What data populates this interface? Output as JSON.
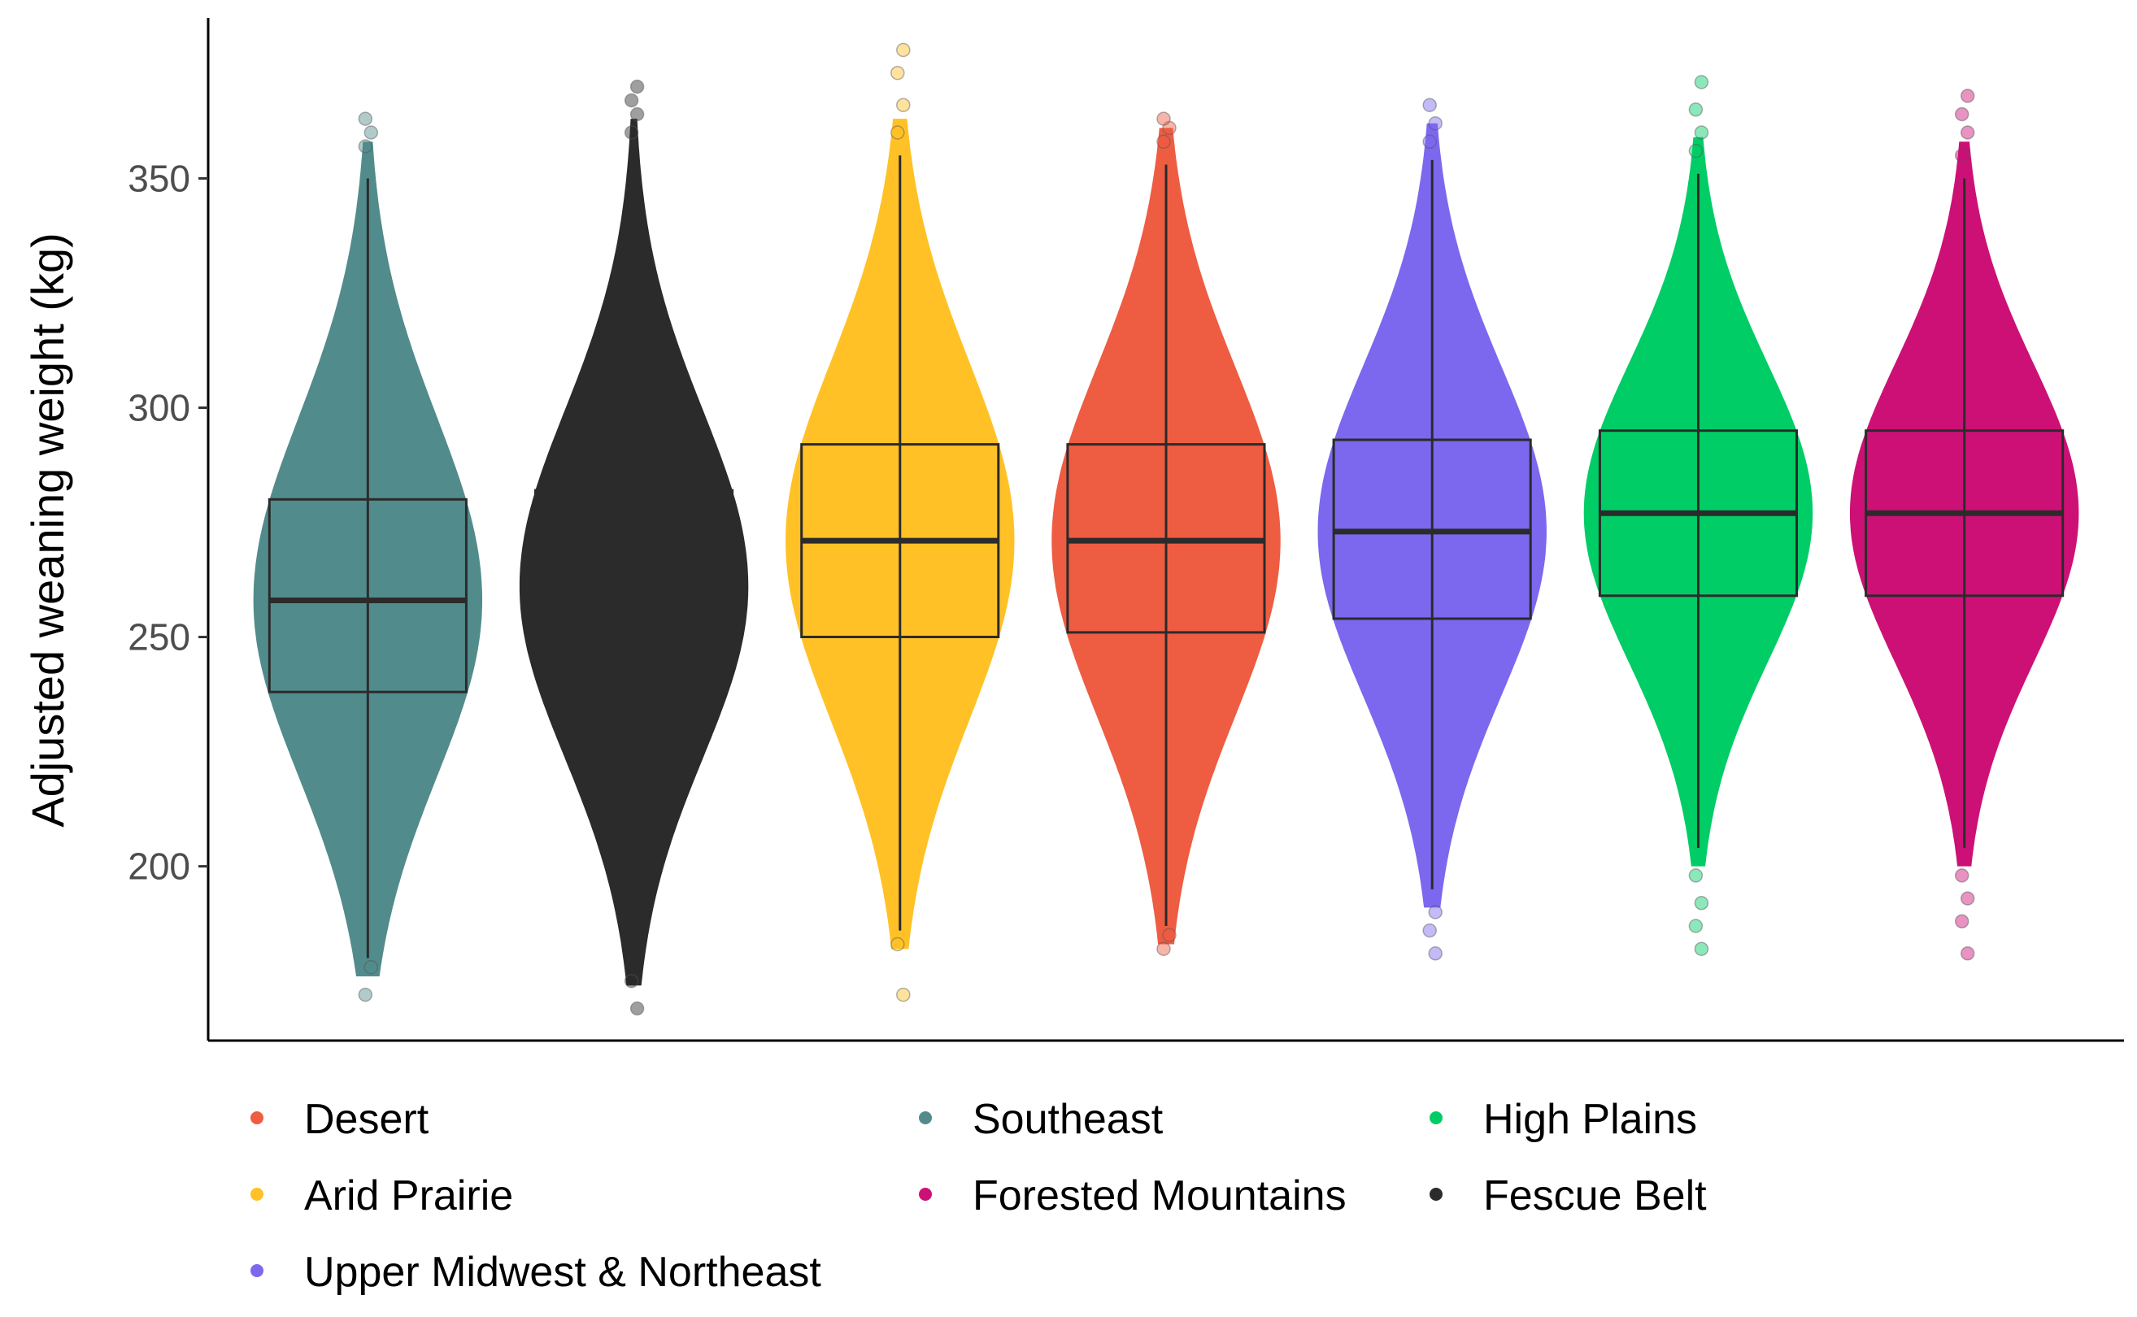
{
  "chart_data": {
    "type": "violin",
    "title": "",
    "xlabel": "",
    "ylabel": "Adjusted weaning weight (kg)",
    "ylim": [
      162,
      385
    ],
    "y_ticks": [
      200,
      250,
      300,
      350
    ],
    "x_axis_labels": "none",
    "grid": false,
    "legend": {
      "placement": "bottom",
      "columns": 3
    },
    "series": [
      {
        "name": "Southeast",
        "color": "#528B8B",
        "min": 180,
        "q1": 238,
        "median": 258,
        "q3": 280,
        "max": 350,
        "outliers": [
          357,
          360,
          363,
          178,
          172
        ]
      },
      {
        "name": "Fescue Belt",
        "color": "#2B2B2B",
        "min": 178,
        "q1": 242,
        "median": 261,
        "q3": 282,
        "max": 355,
        "outliers": [
          360,
          364,
          367,
          370,
          175,
          169
        ]
      },
      {
        "name": "Arid Prairie",
        "color": "#FFC125",
        "min": 186,
        "q1": 250,
        "median": 271,
        "q3": 292,
        "max": 355,
        "outliers": [
          360,
          366,
          373,
          378,
          183,
          172
        ]
      },
      {
        "name": "Desert",
        "color": "#EE5C42",
        "min": 187,
        "q1": 251,
        "median": 271,
        "q3": 292,
        "max": 353,
        "outliers": [
          358,
          361,
          363,
          185,
          182
        ]
      },
      {
        "name": "Upper Midwest & Northeast",
        "color": "#7B68EE",
        "min": 195,
        "q1": 254,
        "median": 273,
        "q3": 293,
        "max": 354,
        "outliers": [
          358,
          362,
          366,
          190,
          186,
          181
        ]
      },
      {
        "name": "High Plains",
        "color": "#00CD66",
        "min": 204,
        "q1": 259,
        "median": 277,
        "q3": 295,
        "max": 351,
        "outliers": [
          356,
          360,
          365,
          371,
          198,
          192,
          187,
          182
        ]
      },
      {
        "name": "Forested Mountains",
        "color": "#CD1076",
        "min": 204,
        "q1": 259,
        "median": 277,
        "q3": 295,
        "max": 350,
        "outliers": [
          355,
          360,
          364,
          368,
          198,
          193,
          188,
          181
        ]
      }
    ],
    "legend_order": [
      "Desert",
      "Southeast",
      "High Plains",
      "Arid Prairie",
      "Forested Mountains",
      "Fescue Belt",
      "Upper Midwest & Northeast"
    ]
  }
}
